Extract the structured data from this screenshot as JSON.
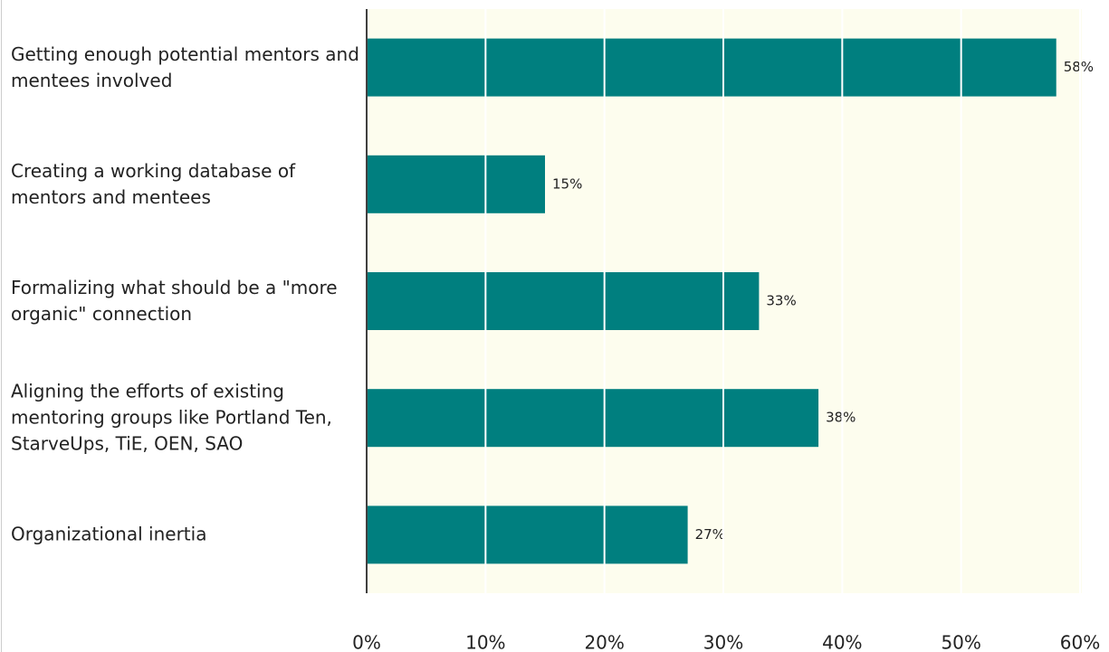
{
  "chart_data": {
    "type": "bar",
    "orientation": "horizontal",
    "categories": [
      "Getting enough potential mentors and mentees involved",
      "Creating a working database of mentors and mentees",
      "Formalizing what should be a \"more organic\" connection",
      "Aligning the efforts of existing mentoring groups like Portland Ten, StarveUps, TiE, OEN, SAO",
      "Organizational inertia"
    ],
    "values": [
      58,
      15,
      33,
      38,
      27
    ],
    "value_labels": [
      "58%",
      "15%",
      "33%",
      "38%",
      "27%"
    ],
    "color": "#007f7f",
    "xlim": [
      0,
      60
    ],
    "xticks": [
      {
        "value": 0,
        "label": "0%"
      },
      {
        "value": 10,
        "label": "10%"
      },
      {
        "value": 20,
        "label": "20%"
      },
      {
        "value": 30,
        "label": "30%"
      },
      {
        "value": 40,
        "label": "40%"
      },
      {
        "value": 50,
        "label": "50%"
      },
      {
        "value": 60,
        "label": "60%"
      }
    ],
    "grid": true
  }
}
